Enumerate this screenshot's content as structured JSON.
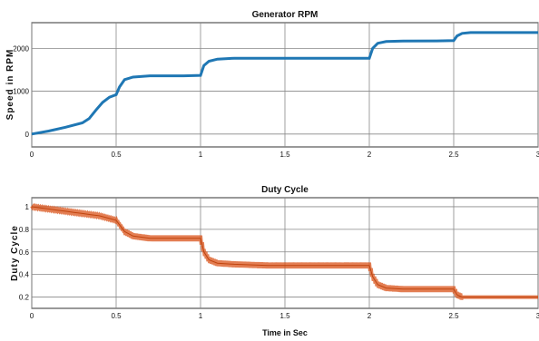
{
  "chart_data": [
    {
      "type": "line",
      "title": "Generator RPM",
      "xlabel": "",
      "ylabel": "Speed in RPM",
      "xlim": [
        0,
        3
      ],
      "ylim": [
        -300,
        2600
      ],
      "x_ticks": [
        0,
        0.5,
        1,
        1.5,
        2,
        2.5,
        3
      ],
      "x_tick_labels": [
        "0",
        "0.5",
        "1",
        "1.5",
        "2",
        "2.5",
        "3"
      ],
      "y_ticks": [
        0,
        1000,
        2000
      ],
      "y_tick_labels": [
        "0",
        "1000",
        "2000"
      ],
      "grid": true,
      "color": "#1f77b4",
      "series": [
        {
          "x": [
            0,
            0.1,
            0.2,
            0.3,
            0.34,
            0.38,
            0.42,
            0.46,
            0.5,
            0.52,
            0.55,
            0.6,
            0.7,
            0.8,
            0.9,
            1.0,
            1.02,
            1.05,
            1.1,
            1.2,
            1.4,
            1.6,
            1.8,
            2.0,
            2.02,
            2.05,
            2.1,
            2.2,
            2.4,
            2.5,
            2.52,
            2.55,
            2.6,
            2.8,
            3.0
          ],
          "y": [
            0,
            70,
            160,
            260,
            360,
            560,
            740,
            860,
            920,
            1100,
            1270,
            1330,
            1360,
            1360,
            1360,
            1370,
            1600,
            1700,
            1750,
            1770,
            1770,
            1770,
            1770,
            1770,
            2000,
            2120,
            2160,
            2170,
            2175,
            2180,
            2290,
            2350,
            2370,
            2370,
            2370
          ]
        }
      ]
    },
    {
      "type": "line",
      "title": "Duty Cycle",
      "xlabel": "Time in Sec",
      "ylabel": "Duty Cycle",
      "xlim": [
        0,
        3
      ],
      "ylim": [
        0.1,
        1.08
      ],
      "x_ticks": [
        0,
        0.5,
        1,
        1.5,
        2,
        2.5,
        3
      ],
      "x_tick_labels": [
        "0",
        "0.5",
        "1",
        "1.5",
        "2",
        "2.5",
        "3"
      ],
      "y_ticks": [
        0.2,
        0.4,
        0.6,
        0.8,
        1
      ],
      "y_tick_labels": [
        "0.2",
        "0.4",
        "0.6",
        "0.8",
        "1"
      ],
      "grid": true,
      "color": "#d95319",
      "series": [
        {
          "x": [
            0,
            0.05,
            0.1,
            0.15,
            0.2,
            0.25,
            0.3,
            0.35,
            0.4,
            0.45,
            0.5,
            0.52,
            0.55,
            0.6,
            0.7,
            0.8,
            0.9,
            1.0,
            1.02,
            1.05,
            1.1,
            1.2,
            1.4,
            1.6,
            1.8,
            2.0,
            2.02,
            2.05,
            2.1,
            2.2,
            2.4,
            2.5,
            2.52,
            2.55,
            2.6,
            2.8,
            3.0
          ],
          "y": [
            1.0,
            0.99,
            0.98,
            0.97,
            0.96,
            0.95,
            0.94,
            0.93,
            0.92,
            0.9,
            0.88,
            0.84,
            0.78,
            0.74,
            0.72,
            0.72,
            0.72,
            0.72,
            0.6,
            0.53,
            0.5,
            0.49,
            0.48,
            0.48,
            0.48,
            0.48,
            0.38,
            0.31,
            0.28,
            0.27,
            0.27,
            0.27,
            0.22,
            0.2,
            0.2,
            0.2,
            0.2
          ],
          "band_width": 0.025
        }
      ]
    }
  ]
}
